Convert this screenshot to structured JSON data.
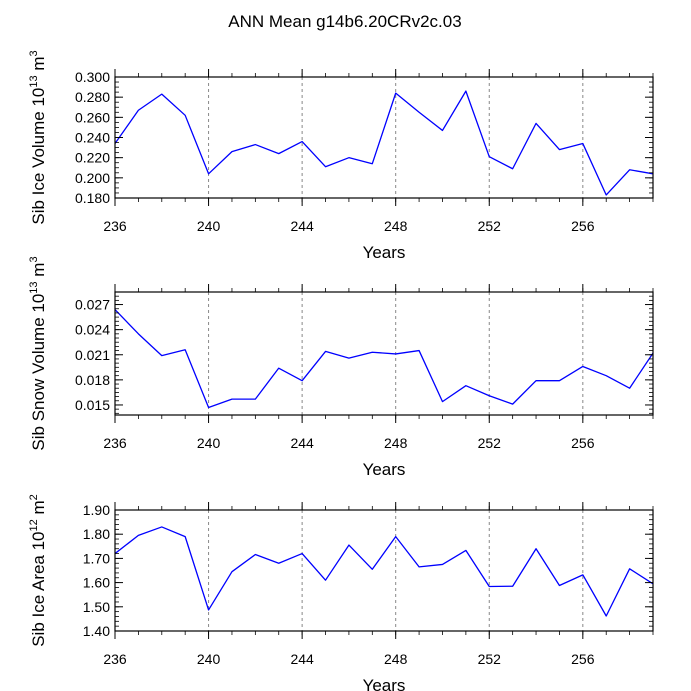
{
  "title": "ANN Mean g14b6.20CRv2c.03",
  "style": {
    "line_color": "#0000ff",
    "axis_color": "#000000",
    "grid_color": "#888888"
  },
  "chart_data": [
    {
      "type": "line",
      "xlabel": "Years",
      "ylabel": {
        "prefix": "Sib Ice Volume 10",
        "exp": "13",
        "unit": " m",
        "unit_exp": "3"
      },
      "xlim": [
        236,
        259
      ],
      "ylim": [
        0.18,
        0.3
      ],
      "xticks": [
        236,
        240,
        244,
        248,
        252,
        256
      ],
      "xticklabels": [
        "236",
        "240",
        "244",
        "248",
        "252",
        "256"
      ],
      "yticks": [
        0.18,
        0.2,
        0.22,
        0.24,
        0.26,
        0.28,
        0.3
      ],
      "yticklabels": [
        "0.180",
        "0.200",
        "0.220",
        "0.240",
        "0.260",
        "0.280",
        "0.300"
      ],
      "yminor_step": 0.005,
      "xminor_step": 1,
      "grid_x": [
        240,
        244,
        248,
        252,
        256
      ],
      "series": [
        {
          "name": "Sib Ice Volume",
          "x": [
            236,
            237,
            238,
            239,
            240,
            241,
            242,
            243,
            244,
            245,
            246,
            247,
            248,
            249,
            250,
            251,
            252,
            253,
            254,
            255,
            256,
            257,
            258,
            259
          ],
          "values": [
            0.234,
            0.267,
            0.283,
            0.262,
            0.204,
            0.226,
            0.233,
            0.224,
            0.236,
            0.211,
            0.22,
            0.214,
            0.284,
            0.265,
            0.247,
            0.286,
            0.221,
            0.209,
            0.254,
            0.228,
            0.234,
            0.183,
            0.208,
            0.204
          ]
        }
      ]
    },
    {
      "type": "line",
      "xlabel": "Years",
      "ylabel": {
        "prefix": "Sib Snow Volume 10",
        "exp": "13",
        "unit": " m",
        "unit_exp": "3"
      },
      "xlim": [
        236,
        259
      ],
      "ylim": [
        0.0138,
        0.0285
      ],
      "xticks": [
        236,
        240,
        244,
        248,
        252,
        256
      ],
      "xticklabels": [
        "236",
        "240",
        "244",
        "248",
        "252",
        "256"
      ],
      "yticks": [
        0.015,
        0.018,
        0.021,
        0.024,
        0.027
      ],
      "yticklabels": [
        "0.015",
        "0.018",
        "0.021",
        "0.024",
        "0.027"
      ],
      "yminor_step": 0.0005,
      "xminor_step": 1,
      "grid_x": [
        240,
        244,
        248,
        252,
        256
      ],
      "series": [
        {
          "name": "Sib Snow Volume",
          "x": [
            236,
            237,
            238,
            239,
            240,
            241,
            242,
            243,
            244,
            245,
            246,
            247,
            248,
            249,
            250,
            251,
            252,
            253,
            254,
            255,
            256,
            257,
            258,
            259
          ],
          "values": [
            0.0264,
            0.0235,
            0.0209,
            0.0216,
            0.0147,
            0.0157,
            0.0157,
            0.0194,
            0.0179,
            0.0214,
            0.0206,
            0.0213,
            0.0211,
            0.0215,
            0.0154,
            0.0173,
            0.0161,
            0.0151,
            0.0179,
            0.0179,
            0.0196,
            0.0185,
            0.017,
            0.0212
          ]
        }
      ]
    },
    {
      "type": "line",
      "xlabel": "Years",
      "ylabel": {
        "prefix": "Sib Ice Area 10",
        "exp": "12",
        "unit": " m",
        "unit_exp": "2"
      },
      "xlim": [
        236,
        259
      ],
      "ylim": [
        1.4,
        1.9
      ],
      "xticks": [
        236,
        240,
        244,
        248,
        252,
        256
      ],
      "xticklabels": [
        "236",
        "240",
        "244",
        "248",
        "252",
        "256"
      ],
      "yticks": [
        1.4,
        1.5,
        1.6,
        1.7,
        1.8,
        1.9
      ],
      "yticklabels": [
        "1.40",
        "1.50",
        "1.60",
        "1.70",
        "1.80",
        "1.90"
      ],
      "yminor_step": 0.02,
      "xminor_step": 1,
      "grid_x": [
        240,
        244,
        248,
        252,
        256
      ],
      "series": [
        {
          "name": "Sib Ice Area",
          "x": [
            236,
            237,
            238,
            239,
            240,
            241,
            242,
            243,
            244,
            245,
            246,
            247,
            248,
            249,
            250,
            251,
            252,
            253,
            254,
            255,
            256,
            257,
            258,
            259
          ],
          "values": [
            1.72,
            1.795,
            1.83,
            1.79,
            1.487,
            1.645,
            1.716,
            1.68,
            1.72,
            1.61,
            1.755,
            1.655,
            1.79,
            1.665,
            1.675,
            1.733,
            1.584,
            1.585,
            1.74,
            1.588,
            1.632,
            1.462,
            1.657,
            1.595
          ]
        }
      ]
    }
  ]
}
